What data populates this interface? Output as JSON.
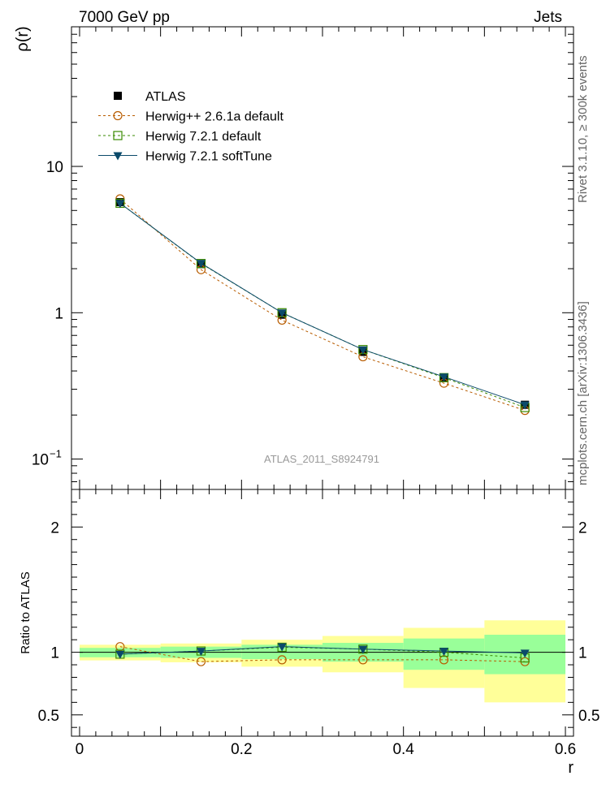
{
  "header": {
    "left": "7000 GeV pp",
    "right": "Jets"
  },
  "side_labels": {
    "rivet": "Rivet 3.1.10, ≥ 300k events",
    "mcplots": "mcplots.cern.ch [arXiv:1306.3436]"
  },
  "chart_data": [
    {
      "type": "line",
      "panel": "main",
      "ylabel": "ρ(r)",
      "xlabel": "",
      "yscale": "log",
      "xlim": [
        -0.01,
        0.61
      ],
      "ylim": [
        0.062,
        90
      ],
      "yticks": [
        {
          "value": 0.1,
          "label": "10",
          "sup": "−1"
        },
        {
          "value": 1,
          "label": "1",
          "sup": ""
        },
        {
          "value": 10,
          "label": "10",
          "sup": ""
        }
      ],
      "watermark": "ATLAS_2011_S8924791",
      "legend_position": "top-left",
      "x": [
        0.05,
        0.15,
        0.25,
        0.35,
        0.45,
        0.55
      ],
      "series": [
        {
          "name": "ATLAS",
          "color": "#000000",
          "marker": "filled-square",
          "line": "none",
          "values": [
            5.7,
            2.15,
            0.97,
            0.54,
            0.36,
            0.235
          ]
        },
        {
          "name": "Herwig++ 2.6.1a default",
          "color": "#b85c00",
          "marker": "open-circle",
          "line": "dashed",
          "values": [
            6.0,
            1.97,
            0.89,
            0.5,
            0.33,
            0.215
          ]
        },
        {
          "name": "Herwig 7.2.1 default",
          "color": "#3a8a00",
          "marker": "open-square",
          "line": "dashed",
          "values": [
            5.6,
            2.17,
            1.0,
            0.56,
            0.36,
            0.225
          ]
        },
        {
          "name": "Herwig 7.2.1 softTune",
          "color": "#0b4a6a",
          "marker": "filled-triangle-down",
          "line": "solid",
          "values": [
            5.6,
            2.18,
            1.0,
            0.56,
            0.365,
            0.235
          ]
        }
      ]
    },
    {
      "type": "line",
      "panel": "ratio",
      "ylabel": "Ratio to ATLAS",
      "xlabel": "r",
      "xlim": [
        -0.01,
        0.61
      ],
      "ylim": [
        0.33,
        2.3
      ],
      "xticks": [
        {
          "value": 0,
          "label": "0"
        },
        {
          "value": 0.2,
          "label": "0.2"
        },
        {
          "value": 0.4,
          "label": "0.4"
        },
        {
          "value": 0.6,
          "label": "0.6"
        }
      ],
      "yticks": [
        {
          "value": 0.5,
          "label": "0.5"
        },
        {
          "value": 1,
          "label": "1"
        },
        {
          "value": 2,
          "label": "2"
        }
      ],
      "bins": [
        [
          0.0,
          0.1
        ],
        [
          0.1,
          0.2
        ],
        [
          0.2,
          0.3
        ],
        [
          0.3,
          0.4
        ],
        [
          0.4,
          0.5
        ],
        [
          0.5,
          0.6
        ]
      ],
      "band_outer": {
        "color": "#ffff99",
        "low": [
          0.935,
          0.92,
          0.885,
          0.84,
          0.715,
          0.6
        ],
        "high": [
          1.06,
          1.07,
          1.1,
          1.13,
          1.195,
          1.255
        ]
      },
      "band_inner": {
        "color": "#99ff99",
        "low": [
          0.96,
          0.955,
          0.945,
          0.925,
          0.86,
          0.825
        ],
        "high": [
          1.035,
          1.045,
          1.06,
          1.075,
          1.11,
          1.14
        ]
      },
      "x": [
        0.05,
        0.15,
        0.25,
        0.35,
        0.45,
        0.55
      ],
      "series": [
        {
          "name": "Herwig++ 2.6.1a default",
          "color": "#b85c00",
          "marker": "open-circle",
          "line": "dashed",
          "values": [
            1.045,
            0.925,
            0.94,
            0.94,
            0.94,
            0.925
          ]
        },
        {
          "name": "Herwig 7.2.1 default",
          "color": "#3a8a00",
          "marker": "open-square",
          "line": "dashed",
          "values": [
            0.985,
            1.01,
            1.04,
            1.025,
            1.0,
            0.955
          ]
        },
        {
          "name": "Herwig 7.2.1 softTune",
          "color": "#0b4a6a",
          "marker": "filled-triangle-down",
          "line": "solid",
          "values": [
            0.985,
            1.01,
            1.045,
            1.025,
            1.01,
            0.995
          ]
        }
      ]
    }
  ]
}
